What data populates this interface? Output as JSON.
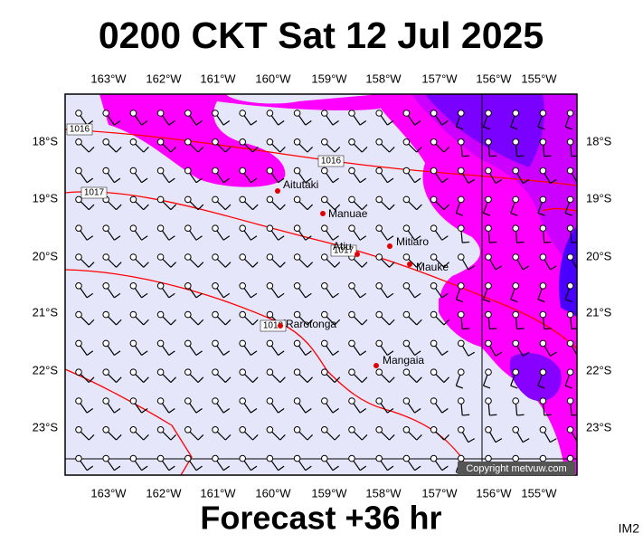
{
  "title": "0200 CKT Sat 12 Jul 2025",
  "footer": "Forecast +36 hr",
  "code": "IM2",
  "copyright": "Copyright metvuw.com",
  "longitude_labels": [
    "163°W",
    "162°W",
    "161°W",
    "160°W",
    "159°W",
    "158°W",
    "157°W",
    "156°W",
    "155°W"
  ],
  "latitude_labels": [
    "18°S",
    "19°S",
    "20°S",
    "21°S",
    "22°S",
    "23°S"
  ],
  "islands": [
    "Aitutaki",
    "Manuae",
    "Atiu",
    "Mitiaro",
    "Mauke",
    "Rarotonga",
    "Mangaia"
  ],
  "isobar_labels": [
    "1016",
    "1016",
    "1017",
    "1017",
    "1018"
  ]
}
